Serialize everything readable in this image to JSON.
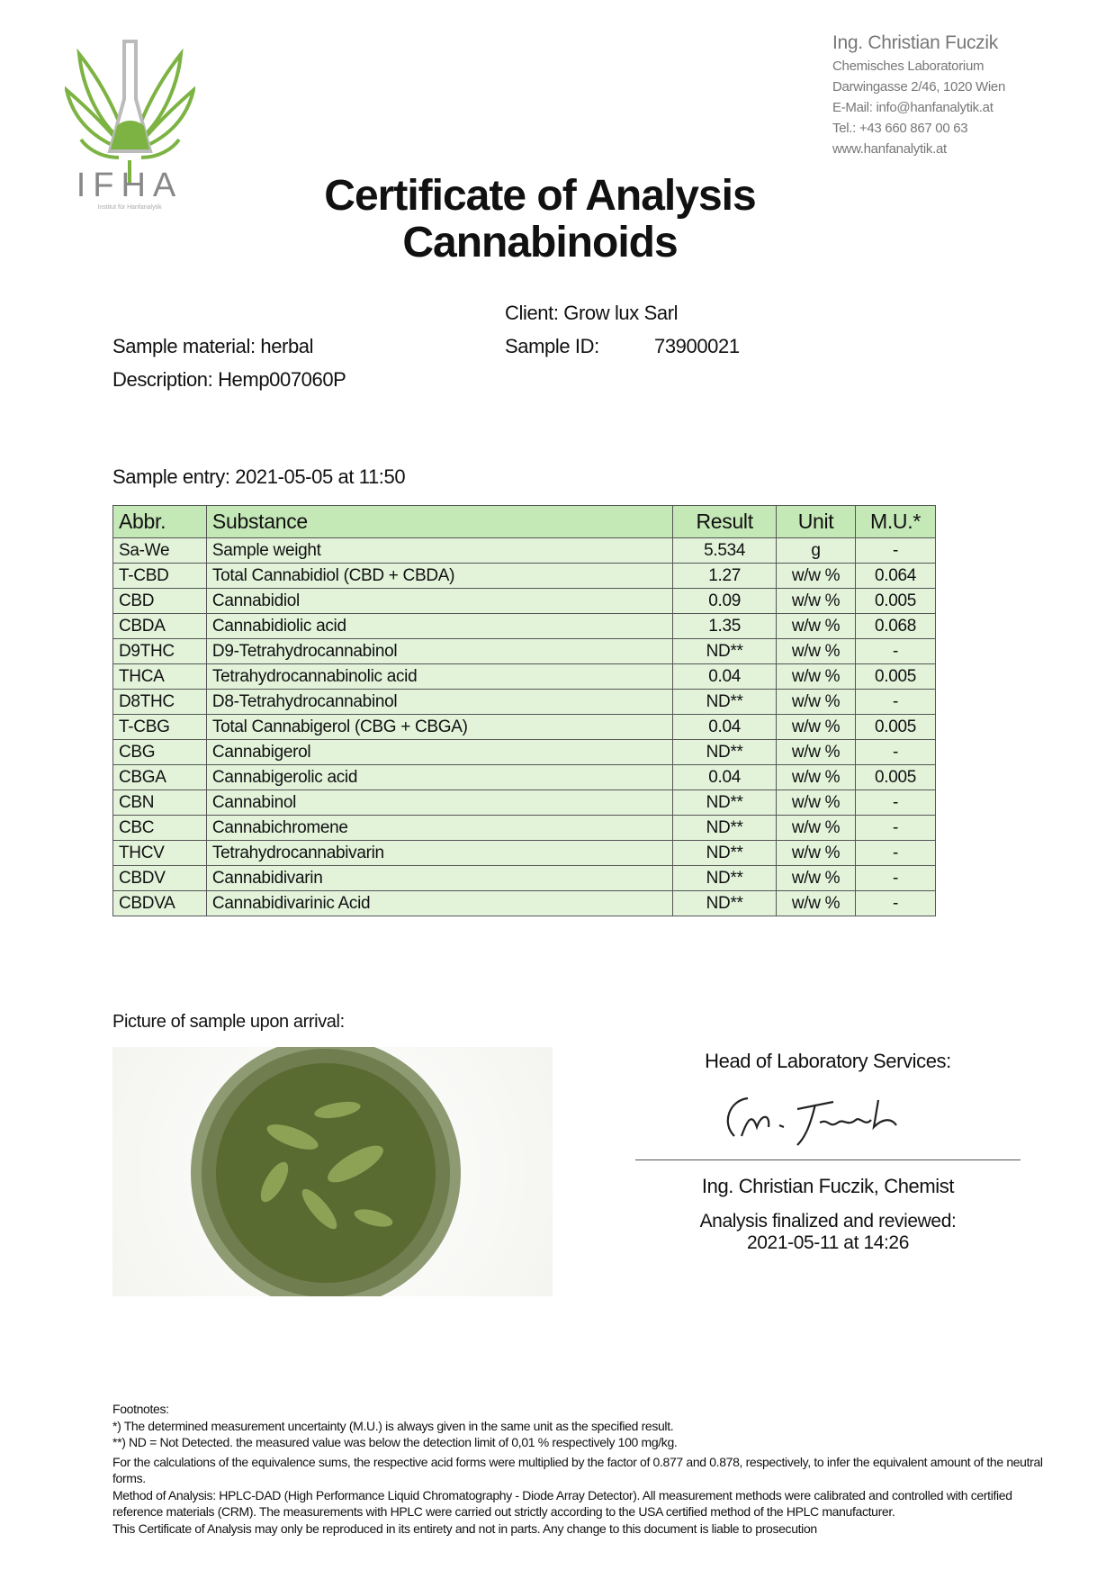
{
  "logo": {
    "text": "IFHA",
    "subtitle": "Institut für Hanfanalytik"
  },
  "lab": {
    "name": "Ing. Christian Fuczik",
    "department": "Chemisches Laboratorium",
    "address": "Darwingasse 2/46, 1020 Wien",
    "email": "E-Mail: info@hanfanalytik.at",
    "phone": "Tel.: +43 660 867 00 63",
    "website": "www.hanfanalytik.at"
  },
  "title": {
    "line1": "Certificate of Analysis",
    "line2": "Cannabinoids"
  },
  "sample": {
    "client": "Client: Grow lux Sarl",
    "id_label": "Sample ID:",
    "id_value": "73900021",
    "material": "Sample material: herbal",
    "description": "Description: Hemp007060P",
    "entry": "Sample entry: 2021-05-05 at 11:50"
  },
  "table": {
    "headers": [
      "Abbr.",
      "Substance",
      "Result",
      "Unit",
      "M.U.*"
    ],
    "rows": [
      [
        "Sa-We",
        "Sample weight",
        "5.534",
        "g",
        "-"
      ],
      [
        "T-CBD",
        "Total Cannabidiol (CBD + CBDA)",
        "1.27",
        "w/w %",
        "0.064"
      ],
      [
        "CBD",
        "Cannabidiol",
        "0.09",
        "w/w %",
        "0.005"
      ],
      [
        "CBDA",
        "Cannabidiolic acid",
        "1.35",
        "w/w %",
        "0.068"
      ],
      [
        "D9THC",
        "D9-Tetrahydrocannabinol",
        "ND**",
        "w/w %",
        "-"
      ],
      [
        "THCA",
        "Tetrahydrocannabinolic acid",
        "0.04",
        "w/w %",
        "0.005"
      ],
      [
        "D8THC",
        "D8-Tetrahydrocannabinol",
        "ND**",
        "w/w %",
        "-"
      ],
      [
        "T-CBG",
        "Total Cannabigerol (CBG + CBGA)",
        "0.04",
        "w/w %",
        "0.005"
      ],
      [
        "CBG",
        "Cannabigerol",
        "ND**",
        "w/w %",
        "-"
      ],
      [
        "CBGA",
        "Cannabigerolic acid",
        "0.04",
        "w/w %",
        "0.005"
      ],
      [
        "CBN",
        "Cannabinol",
        "ND**",
        "w/w %",
        "-"
      ],
      [
        "CBC",
        "Cannabichromene",
        "ND**",
        "w/w %",
        "-"
      ],
      [
        "THCV",
        "Tetrahydrocannabivarin",
        "ND**",
        "w/w %",
        "-"
      ],
      [
        "CBDV",
        "Cannabidivarin",
        "ND**",
        "w/w %",
        "-"
      ],
      [
        "CBDVA",
        "Cannabidivarinic Acid",
        "ND**",
        "w/w %",
        "-"
      ]
    ]
  },
  "picture_label": "Picture of sample upon arrival:",
  "signature": {
    "heading": "Head of Laboratory Services:",
    "signature_text": "Chr. Fuczik",
    "name": "Ing. Christian Fuczik, Chemist",
    "finalized_label": "Analysis finalized and reviewed:",
    "finalized_date": "2021-05-11 at 14:26"
  },
  "footnotes": {
    "heading": "Footnotes:",
    "lines": [
      "*) The determined measurement uncertainty (M.U.) is always given in the same unit as the specified result.",
      "**) ND = Not Detected. the measured value was below the detection limit of 0,01 % respectively 100 mg/kg.",
      "For the calculations of the equivalence sums, the respective acid forms were multiplied by the factor of 0.877 and 0.878, respectively, to infer the equivalent amount of the neutral forms.",
      "Method of Analysis: HPLC-DAD (High Performance Liquid Chromatography - Diode Array Detector). All measurement methods were calibrated and controlled with certified reference materials (CRM). The measurements with HPLC were carried out strictly according to the USA certified method of the HPLC manufacturer.",
      "This Certificate of Analysis may only be reproduced in its entirety and not in parts. Any change to this document is liable to prosecution"
    ]
  },
  "colors": {
    "header_bg": "#c5e8b7",
    "row_bg": "#e2f3da",
    "brand_green": "#7cb342",
    "lab_gray": "#777777"
  }
}
